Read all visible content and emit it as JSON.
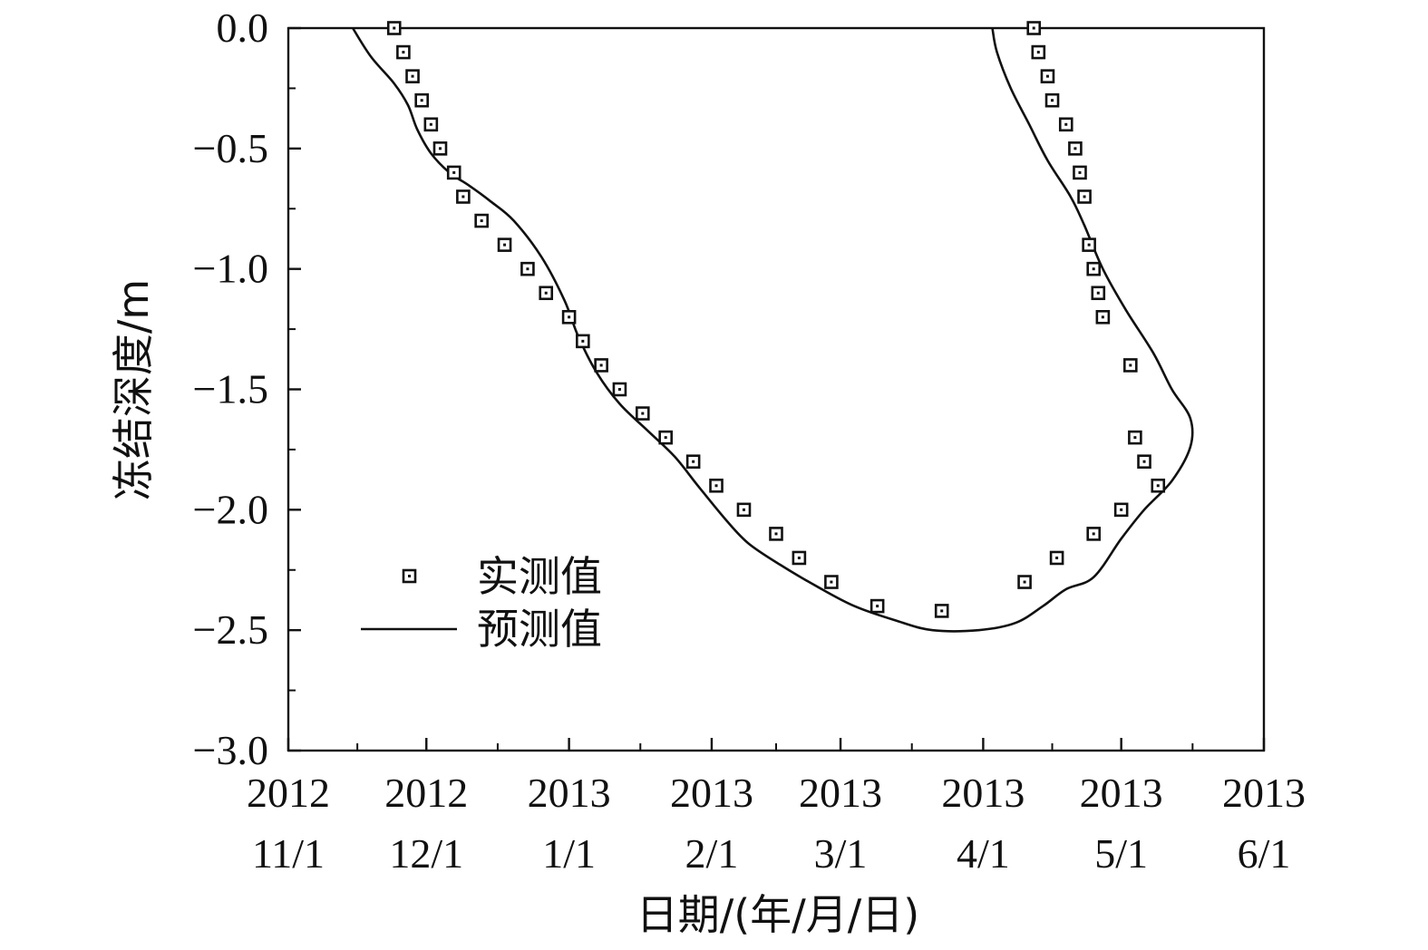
{
  "chart_data": {
    "type": "line",
    "xlabel": "日期/(年/月/日)",
    "ylabel": "冻结深度/m",
    "ylim": [
      -3.0,
      0.0
    ],
    "xlim": [
      "2012-11-01",
      "2013-06-01"
    ],
    "yticks": [
      "0.0",
      "−0.5",
      "−1.0",
      "−1.5",
      "−2.0",
      "−2.5",
      "−3.0"
    ],
    "yticks_values": [
      0.0,
      -0.5,
      -1.0,
      -1.5,
      -2.0,
      -2.5,
      -3.0
    ],
    "xticks": [
      {
        "date": "2012-11-01",
        "year": "2012",
        "md": "11/1"
      },
      {
        "date": "2012-12-01",
        "year": "2012",
        "md": "12/1"
      },
      {
        "date": "2013-01-01",
        "year": "2013",
        "md": "1/1"
      },
      {
        "date": "2013-02-01",
        "year": "2013",
        "md": "2/1"
      },
      {
        "date": "2013-03-01",
        "year": "2013",
        "md": "3/1"
      },
      {
        "date": "2013-04-01",
        "year": "2013",
        "md": "4/1"
      },
      {
        "date": "2013-05-01",
        "year": "2013",
        "md": "5/1"
      },
      {
        "date": "2013-06-01",
        "year": "2013",
        "md": "6/1"
      }
    ],
    "legend": {
      "position": "lower-left",
      "entries": [
        "实测值",
        "预测值"
      ]
    },
    "grid": false,
    "series": [
      {
        "name": "实测值",
        "type": "scatter",
        "marker": "square",
        "points": [
          [
            "2012-11-24",
            0.0
          ],
          [
            "2012-11-26",
            -0.1
          ],
          [
            "2012-11-28",
            -0.2
          ],
          [
            "2012-11-30",
            -0.3
          ],
          [
            "2012-12-02",
            -0.4
          ],
          [
            "2012-12-04",
            -0.5
          ],
          [
            "2012-12-07",
            -0.6
          ],
          [
            "2012-12-09",
            -0.7
          ],
          [
            "2012-12-13",
            -0.8
          ],
          [
            "2012-12-18",
            -0.9
          ],
          [
            "2012-12-23",
            -1.0
          ],
          [
            "2012-12-27",
            -1.1
          ],
          [
            "2013-01-01",
            -1.2
          ],
          [
            "2013-01-04",
            -1.3
          ],
          [
            "2013-01-08",
            -1.4
          ],
          [
            "2013-01-12",
            -1.5
          ],
          [
            "2013-01-17",
            -1.6
          ],
          [
            "2013-01-22",
            -1.7
          ],
          [
            "2013-01-28",
            -1.8
          ],
          [
            "2013-02-02",
            -1.9
          ],
          [
            "2013-02-08",
            -2.0
          ],
          [
            "2013-02-15",
            -2.1
          ],
          [
            "2013-02-20",
            -2.2
          ],
          [
            "2013-02-27",
            -2.3
          ],
          [
            "2013-03-09",
            -2.4
          ],
          [
            "2013-03-23",
            -2.42
          ],
          [
            "2013-04-10",
            -2.3
          ],
          [
            "2013-04-17",
            -2.2
          ],
          [
            "2013-04-25",
            -2.1
          ],
          [
            "2013-05-01",
            -2.0
          ],
          [
            "2013-05-09",
            -1.9
          ],
          [
            "2013-05-06",
            -1.8
          ],
          [
            "2013-05-04",
            -1.7
          ],
          [
            "2013-05-03",
            -1.4
          ],
          [
            "2013-04-27",
            -1.2
          ],
          [
            "2013-04-26",
            -1.1
          ],
          [
            "2013-04-25",
            -1.0
          ],
          [
            "2013-04-24",
            -0.9
          ],
          [
            "2013-04-23",
            -0.7
          ],
          [
            "2013-04-22",
            -0.6
          ],
          [
            "2013-04-21",
            -0.5
          ],
          [
            "2013-04-19",
            -0.4
          ],
          [
            "2013-04-16",
            -0.3
          ],
          [
            "2013-04-15",
            -0.2
          ],
          [
            "2013-04-13",
            -0.1
          ],
          [
            "2013-04-12",
            0.0
          ]
        ]
      },
      {
        "name": "预测值",
        "type": "line",
        "points": [
          [
            "2012-11-15",
            0.0
          ],
          [
            "2012-11-19",
            -0.12
          ],
          [
            "2012-11-24",
            -0.23
          ],
          [
            "2012-11-27",
            -0.32
          ],
          [
            "2012-11-29",
            -0.42
          ],
          [
            "2012-12-02",
            -0.52
          ],
          [
            "2012-12-06",
            -0.6
          ],
          [
            "2012-12-10",
            -0.65
          ],
          [
            "2012-12-15",
            -0.72
          ],
          [
            "2012-12-20",
            -0.8
          ],
          [
            "2012-12-26",
            -0.95
          ],
          [
            "2012-12-31",
            -1.13
          ],
          [
            "2013-01-03",
            -1.28
          ],
          [
            "2013-01-07",
            -1.43
          ],
          [
            "2013-01-12",
            -1.56
          ],
          [
            "2013-01-18",
            -1.67
          ],
          [
            "2013-01-24",
            -1.78
          ],
          [
            "2013-01-29",
            -1.9
          ],
          [
            "2013-02-04",
            -2.04
          ],
          [
            "2013-02-09",
            -2.14
          ],
          [
            "2013-02-16",
            -2.23
          ],
          [
            "2013-02-24",
            -2.32
          ],
          [
            "2013-03-04",
            -2.4
          ],
          [
            "2013-03-13",
            -2.46
          ],
          [
            "2013-03-21",
            -2.5
          ],
          [
            "2013-03-31",
            -2.5
          ],
          [
            "2013-04-08",
            -2.47
          ],
          [
            "2013-04-14",
            -2.4
          ],
          [
            "2013-04-19",
            -2.33
          ],
          [
            "2013-04-25",
            -2.28
          ],
          [
            "2013-05-01",
            -2.12
          ],
          [
            "2013-05-06",
            -2.0
          ],
          [
            "2013-05-12",
            -1.88
          ],
          [
            "2013-05-16",
            -1.74
          ],
          [
            "2013-05-16",
            -1.62
          ],
          [
            "2013-05-12",
            -1.5
          ],
          [
            "2013-05-08",
            -1.35
          ],
          [
            "2013-05-02",
            -1.17
          ],
          [
            "2013-04-27",
            -1.0
          ],
          [
            "2013-04-23",
            -0.82
          ],
          [
            "2013-04-20",
            -0.7
          ],
          [
            "2013-04-15",
            -0.55
          ],
          [
            "2013-04-11",
            -0.4
          ],
          [
            "2013-04-07",
            -0.25
          ],
          [
            "2013-04-04",
            -0.1
          ],
          [
            "2013-04-03",
            0.0
          ]
        ]
      }
    ]
  }
}
